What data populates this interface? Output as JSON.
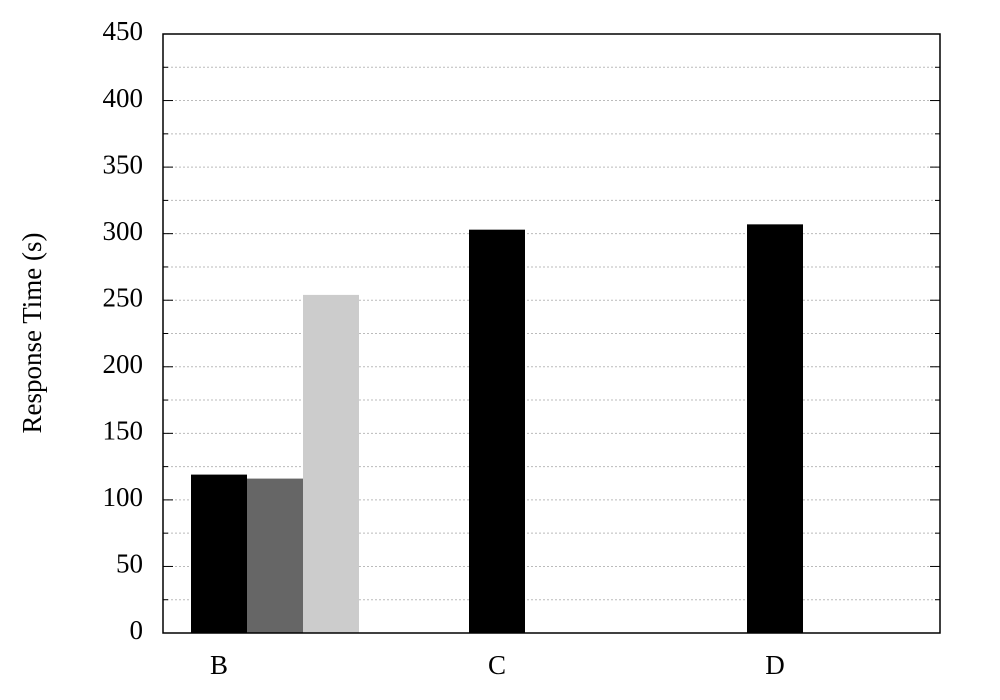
{
  "chart_data": {
    "type": "bar",
    "y_label": "Response Time (s)",
    "categories": [
      "B",
      "C",
      "D"
    ],
    "series": [
      {
        "color": "#000000",
        "values": [
          119,
          303,
          307
        ]
      },
      {
        "color": "#666666",
        "values": [
          116,
          null,
          null
        ]
      },
      {
        "color": "#cccccc",
        "values": [
          254,
          null,
          null
        ]
      }
    ],
    "ylim": [
      0,
      450
    ],
    "yticks": [
      0,
      50,
      100,
      150,
      200,
      250,
      300,
      350,
      400,
      450
    ],
    "grid": true
  }
}
